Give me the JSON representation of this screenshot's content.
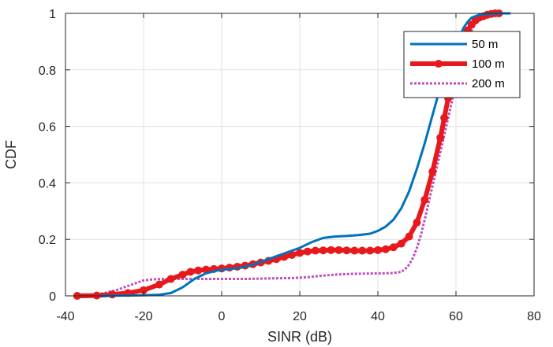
{
  "chart_data": {
    "type": "line",
    "title": "",
    "xlabel": "SINR (dB)",
    "ylabel": "CDF",
    "xlim": [
      -40,
      80
    ],
    "ylim": [
      0,
      1
    ],
    "xticks": [
      -40,
      -20,
      0,
      20,
      40,
      60,
      80
    ],
    "xtick_labels": [
      "-40",
      "-20",
      "0",
      "20",
      "40",
      "60",
      "80"
    ],
    "yticks": [
      0,
      0.2,
      0.4,
      0.6,
      0.8,
      1
    ],
    "ytick_labels": [
      "0",
      "0.2",
      "0.4",
      "0.6",
      "0.8",
      "1"
    ],
    "grid": true,
    "legend_position": "top-right",
    "series": [
      {
        "name": "50 m",
        "color": "#0072BD",
        "style": "solid",
        "x": [
          -31,
          -25,
          -20,
          -16,
          -13,
          -10,
          -7,
          -4,
          -1,
          2,
          5,
          8,
          11,
          14,
          17,
          20,
          23,
          26,
          29,
          32,
          35,
          38,
          40,
          42,
          44,
          46,
          48,
          50,
          52,
          54,
          55,
          56,
          57,
          58,
          59,
          60,
          61,
          62,
          63,
          64,
          66,
          68,
          70,
          72,
          74
        ],
        "y": [
          0,
          0.001,
          0.002,
          0.004,
          0.01,
          0.03,
          0.06,
          0.08,
          0.09,
          0.095,
          0.1,
          0.11,
          0.125,
          0.14,
          0.155,
          0.17,
          0.19,
          0.205,
          0.21,
          0.212,
          0.215,
          0.22,
          0.23,
          0.245,
          0.27,
          0.31,
          0.37,
          0.45,
          0.54,
          0.64,
          0.69,
          0.74,
          0.78,
          0.82,
          0.86,
          0.89,
          0.92,
          0.95,
          0.97,
          0.985,
          0.995,
          0.998,
          0.999,
          1.0,
          1.0
        ]
      },
      {
        "name": "100 m",
        "color": "#E8191C",
        "style": "solid-marker",
        "x": [
          -37,
          -32,
          -28,
          -24,
          -20,
          -16,
          -13,
          -10,
          -8,
          -6,
          -4,
          -2,
          0,
          2,
          4,
          6,
          8,
          10,
          12,
          14,
          16,
          18,
          20,
          22,
          24,
          26,
          28,
          30,
          32,
          34,
          36,
          38,
          40,
          42,
          44,
          46,
          48,
          50,
          52,
          54,
          56,
          57,
          58,
          59,
          60,
          61,
          62,
          63,
          64,
          65,
          66,
          67,
          68,
          69,
          70,
          71
        ],
        "y": [
          0,
          0.001,
          0.005,
          0.01,
          0.02,
          0.04,
          0.06,
          0.075,
          0.085,
          0.09,
          0.093,
          0.095,
          0.097,
          0.1,
          0.103,
          0.107,
          0.112,
          0.118,
          0.124,
          0.13,
          0.138,
          0.145,
          0.152,
          0.157,
          0.16,
          0.161,
          0.162,
          0.162,
          0.161,
          0.16,
          0.16,
          0.16,
          0.162,
          0.165,
          0.172,
          0.185,
          0.21,
          0.26,
          0.34,
          0.44,
          0.56,
          0.63,
          0.7,
          0.76,
          0.82,
          0.87,
          0.91,
          0.94,
          0.96,
          0.975,
          0.985,
          0.99,
          0.995,
          0.998,
          1.0,
          1.0
        ]
      },
      {
        "name": "200 m",
        "color": "#BF4FBF",
        "style": "dotted",
        "x": [
          -38,
          -33,
          -30,
          -27,
          -24,
          -22,
          -20,
          -18,
          -15,
          -12,
          -9,
          -6,
          -3,
          0,
          3,
          6,
          10,
          14,
          18,
          22,
          26,
          30,
          34,
          38,
          42,
          44,
          46,
          47,
          48,
          49,
          50,
          51,
          52,
          53,
          54,
          55,
          56,
          57,
          58,
          59,
          60,
          61,
          62,
          63,
          64,
          65,
          66,
          67,
          68,
          69,
          70
        ],
        "y": [
          0,
          0.003,
          0.01,
          0.02,
          0.035,
          0.045,
          0.055,
          0.058,
          0.06,
          0.06,
          0.06,
          0.06,
          0.06,
          0.06,
          0.06,
          0.06,
          0.061,
          0.062,
          0.063,
          0.066,
          0.072,
          0.076,
          0.078,
          0.079,
          0.08,
          0.081,
          0.085,
          0.095,
          0.11,
          0.135,
          0.17,
          0.215,
          0.27,
          0.33,
          0.39,
          0.45,
          0.51,
          0.57,
          0.63,
          0.69,
          0.75,
          0.8,
          0.85,
          0.9,
          0.94,
          0.965,
          0.98,
          0.99,
          0.995,
          0.998,
          1.0
        ]
      }
    ]
  }
}
